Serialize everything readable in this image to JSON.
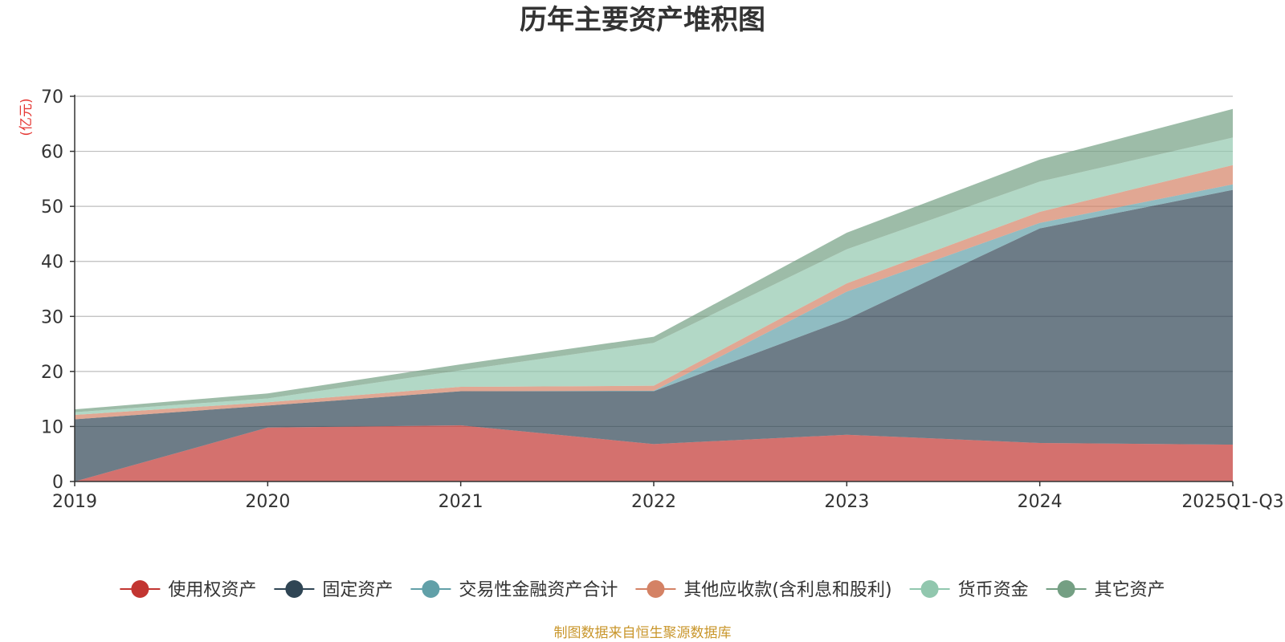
{
  "chart_data": {
    "type": "area",
    "stacked": true,
    "title": "历年主要资产堆积图",
    "unit_label": "(亿元)",
    "source_note": "制图数据来自恒生聚源数据库",
    "categories": [
      "2019",
      "2020",
      "2021",
      "2022",
      "2023",
      "2024",
      "2025Q1-Q3"
    ],
    "ylim": [
      0,
      70
    ],
    "yticks": [
      0,
      10,
      20,
      30,
      40,
      50,
      60,
      70
    ],
    "grid": true,
    "legend_position": "bottom",
    "series": [
      {
        "name": "使用权资产",
        "color": "#c23531",
        "values": [
          0.0,
          9.8,
          10.2,
          6.8,
          8.5,
          7.0,
          6.7
        ]
      },
      {
        "name": "固定资产",
        "color": "#2f4554",
        "values": [
          11.3,
          4.0,
          6.2,
          9.6,
          21.0,
          39.0,
          46.3
        ]
      },
      {
        "name": "交易性金融资产合计",
        "color": "#61a0a8",
        "values": [
          0.0,
          0.0,
          0.0,
          0.1,
          5.0,
          1.0,
          1.0
        ]
      },
      {
        "name": "其他应收款(含利息和股利)",
        "color": "#d48265",
        "values": [
          0.8,
          0.6,
          0.8,
          0.9,
          1.5,
          2.0,
          3.5
        ]
      },
      {
        "name": "货币资金",
        "color": "#91c7ae",
        "values": [
          0.5,
          0.7,
          3.0,
          7.8,
          6.2,
          5.5,
          5.0
        ]
      },
      {
        "name": "其它资产",
        "color": "#749f83",
        "values": [
          0.5,
          0.9,
          1.1,
          1.1,
          3.0,
          4.0,
          5.2
        ]
      }
    ]
  }
}
